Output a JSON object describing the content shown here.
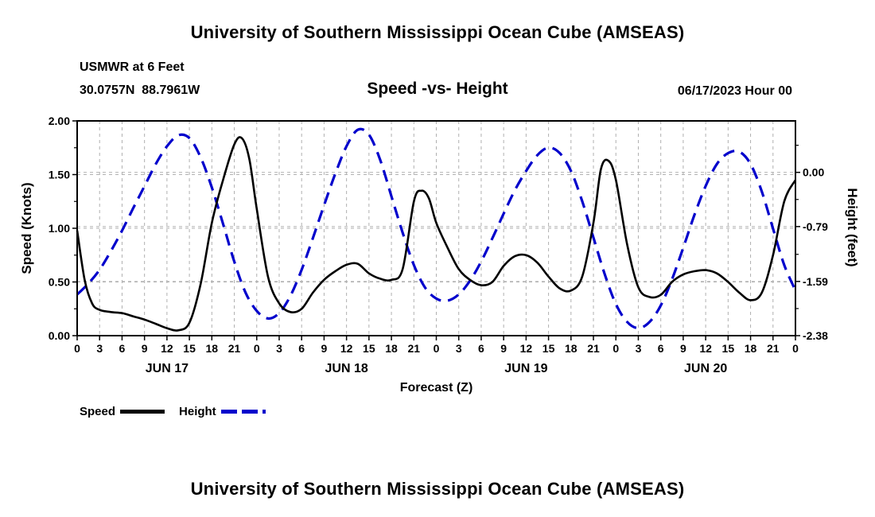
{
  "page": {
    "top_title": "University of Southern Mississippi Ocean Cube (AMSEAS)",
    "bottom_title": "University of Southern Mississippi Ocean Cube (AMSEAS)"
  },
  "chart_data": {
    "type": "line",
    "title": "Speed -vs- Height",
    "annotations": {
      "station": "USMWR at 6 Feet",
      "coordinates": "30.0757N  88.7961W",
      "datetime": "06/17/2023 Hour 00"
    },
    "xlabel": "Forecast (Z)",
    "x_range_hours": [
      0,
      96
    ],
    "x_tick_step": 3,
    "x_tick_labels_per_day": [
      "0",
      "3",
      "6",
      "9",
      "12",
      "15",
      "18",
      "21"
    ],
    "x_final_tick_label": "0",
    "day_labels": [
      "JUN 17",
      "JUN 18",
      "JUN 19",
      "JUN 20"
    ],
    "left_axis": {
      "label": "Speed (Knots)",
      "lim": [
        0,
        2
      ],
      "ticks": [
        "0.00",
        "0.50",
        "1.00",
        "1.50",
        "2.00"
      ],
      "tick_values": [
        0,
        0.5,
        1,
        1.5,
        2
      ],
      "minor_tick_values": [
        0.25,
        0.75,
        1.25,
        1.75
      ]
    },
    "right_axis": {
      "label": "Height (feet)",
      "lim": [
        -2.38,
        0.75
      ],
      "ticks": [
        "0.00",
        "-0.79",
        "-1.59",
        "-2.38"
      ],
      "tick_values": [
        0,
        -0.79,
        -1.59,
        -2.38
      ],
      "minor_tick_values": [
        -1.985,
        -1.195,
        -0.395,
        0.395
      ]
    },
    "grid": {
      "color": "#b0b0b0",
      "dash": [
        4,
        4
      ]
    },
    "series": [
      {
        "name": "Speed",
        "axis": "left",
        "color": "#000000",
        "width": 2.6,
        "dash": null,
        "x": [
          0,
          1,
          2,
          3,
          4.5,
          6,
          7.5,
          9,
          10.5,
          12,
          13.5,
          15,
          16.5,
          18,
          19.5,
          21,
          22,
          23,
          24,
          25.5,
          27,
          28.5,
          30,
          31.5,
          33,
          34.5,
          36,
          37.5,
          39,
          40.5,
          42,
          43.5,
          45,
          46,
          47,
          48,
          49.5,
          51,
          52.5,
          54,
          55.5,
          57,
          58.5,
          60,
          61.5,
          63,
          64.5,
          66,
          67.5,
          69,
          70,
          71,
          72,
          73.5,
          75,
          76.5,
          78,
          79.5,
          81,
          82.5,
          84,
          85.5,
          87,
          88.5,
          90,
          91.5,
          93,
          94.5,
          96
        ],
        "y": [
          0.98,
          0.52,
          0.3,
          0.24,
          0.22,
          0.21,
          0.18,
          0.15,
          0.11,
          0.07,
          0.05,
          0.12,
          0.48,
          1.05,
          1.45,
          1.78,
          1.84,
          1.65,
          1.18,
          0.55,
          0.3,
          0.22,
          0.25,
          0.4,
          0.52,
          0.6,
          0.66,
          0.67,
          0.58,
          0.53,
          0.52,
          0.62,
          1.25,
          1.35,
          1.28,
          1.05,
          0.82,
          0.62,
          0.52,
          0.47,
          0.5,
          0.65,
          0.74,
          0.75,
          0.68,
          0.55,
          0.44,
          0.42,
          0.55,
          1.05,
          1.55,
          1.63,
          1.45,
          0.85,
          0.45,
          0.36,
          0.38,
          0.5,
          0.57,
          0.6,
          0.61,
          0.58,
          0.5,
          0.4,
          0.33,
          0.4,
          0.75,
          1.25,
          1.45
        ]
      },
      {
        "name": "Height",
        "axis": "right",
        "color": "#0000cc",
        "width": 3.2,
        "dash": [
          15,
          9
        ],
        "x": [
          0,
          1.5,
          3,
          4.5,
          6,
          7.5,
          9,
          10.5,
          12,
          13.5,
          15,
          16.5,
          18,
          19.5,
          21,
          22.5,
          24,
          25.5,
          27,
          28.5,
          30,
          31.5,
          33,
          34.5,
          36,
          37.5,
          39,
          40.5,
          42,
          43.5,
          45,
          46.5,
          48,
          49.5,
          51,
          52.5,
          54,
          55.5,
          57,
          58.5,
          60,
          61.5,
          63,
          64.5,
          66,
          67.5,
          69,
          70.5,
          72,
          73.5,
          75,
          76.5,
          78,
          79.5,
          81,
          82.5,
          84,
          85.5,
          87,
          88.5,
          90,
          91.5,
          93,
          94.5,
          96
        ],
        "y": [
          -1.78,
          -1.62,
          -1.42,
          -1.15,
          -0.85,
          -0.52,
          -0.2,
          0.12,
          0.38,
          0.54,
          0.5,
          0.22,
          -0.22,
          -0.75,
          -1.3,
          -1.75,
          -2.02,
          -2.13,
          -2.05,
          -1.8,
          -1.42,
          -0.96,
          -0.48,
          -0.02,
          0.38,
          0.62,
          0.55,
          0.18,
          -0.35,
          -0.88,
          -1.35,
          -1.68,
          -1.84,
          -1.87,
          -1.78,
          -1.58,
          -1.3,
          -0.96,
          -0.6,
          -0.26,
          0.02,
          0.25,
          0.36,
          0.28,
          0.02,
          -0.42,
          -0.95,
          -1.48,
          -1.92,
          -2.18,
          -2.27,
          -2.18,
          -1.94,
          -1.56,
          -1.1,
          -0.62,
          -0.2,
          0.12,
          0.28,
          0.3,
          0.12,
          -0.28,
          -0.82,
          -1.35,
          -1.72
        ]
      }
    ],
    "legend": [
      {
        "label": "Speed",
        "color": "#000000",
        "dashed": false
      },
      {
        "label": "Height",
        "color": "#0000cc",
        "dashed": true
      }
    ]
  }
}
